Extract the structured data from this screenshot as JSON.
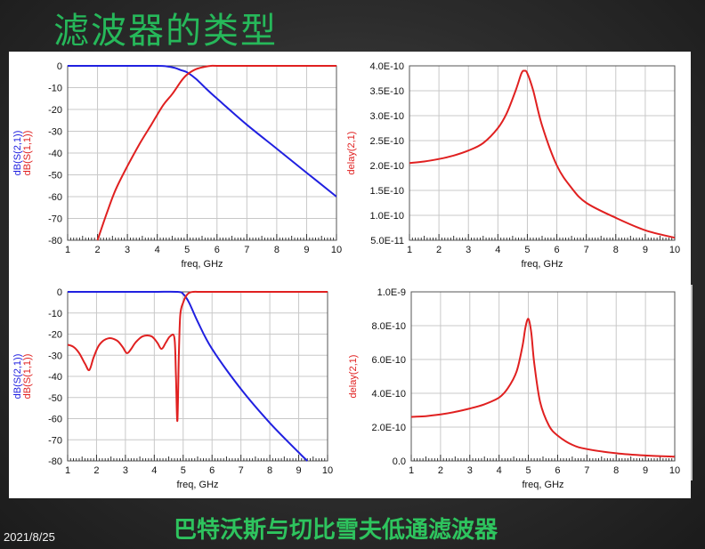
{
  "slide": {
    "title": "滤波器的类型",
    "caption": "巴特沃斯与切比雪夫低通滤波器",
    "date": "2021/8/25"
  },
  "chart_data": [
    {
      "id": "butter-s",
      "type": "line",
      "xlabel": "freq, GHz",
      "ylabel_top": "dB(S(2,1))",
      "ylabel_bottom": "dB(S(1,1))",
      "xlim": [
        1,
        10
      ],
      "ylim": [
        -80,
        0
      ],
      "xticks": [
        "1",
        "2",
        "3",
        "4",
        "5",
        "6",
        "7",
        "8",
        "9",
        "10"
      ],
      "yticks": [
        "0",
        "-10",
        "-20",
        "-30",
        "-40",
        "-50",
        "-60",
        "-70",
        "-80"
      ],
      "grid": true,
      "series": [
        {
          "color": "#2020e0",
          "x": [
            1,
            2,
            3,
            4,
            4.3,
            4.6,
            4.8,
            5,
            5.3,
            5.6,
            6,
            7,
            8,
            9,
            10
          ],
          "y": [
            0,
            0,
            0,
            0,
            -0.2,
            -1,
            -2,
            -3,
            -6,
            -10,
            -15,
            -27,
            -38,
            -49,
            -60
          ]
        },
        {
          "color": "#e02020",
          "x": [
            2,
            2.3,
            2.6,
            3,
            3.4,
            3.8,
            4.2,
            4.5,
            4.8,
            5,
            5.3,
            5.6,
            5.8,
            6,
            7,
            8,
            9,
            10
          ],
          "y": [
            -80,
            -68,
            -57,
            -46,
            -36,
            -27,
            -18,
            -13,
            -7,
            -4,
            -1.5,
            -0.4,
            0,
            0,
            0,
            0,
            0,
            0
          ]
        }
      ]
    },
    {
      "id": "butter-delay",
      "type": "line",
      "xlabel": "freq, GHz",
      "ylabel": "delay(2,1)",
      "xlim": [
        1,
        10
      ],
      "ylim": [
        5e-11,
        4e-10
      ],
      "xticks": [
        "1",
        "2",
        "3",
        "4",
        "5",
        "6",
        "7",
        "8",
        "9",
        "10"
      ],
      "yticks": [
        "4.0E-10",
        "3.5E-10",
        "3.0E-10",
        "2.5E-10",
        "2.0E-10",
        "1.5E-10",
        "1.0E-10",
        "5.0E-11"
      ],
      "grid": true,
      "series": [
        {
          "color": "#e02020",
          "x": [
            1,
            1.5,
            2,
            2.5,
            3,
            3.5,
            4,
            4.3,
            4.6,
            4.8,
            4.9,
            5,
            5.2,
            5.5,
            6,
            6.5,
            7,
            8,
            9,
            10
          ],
          "y": [
            2.05e-10,
            2.08e-10,
            2.13e-10,
            2.2e-10,
            2.3e-10,
            2.45e-10,
            2.75e-10,
            3.05e-10,
            3.5e-10,
            3.85e-10,
            3.9e-10,
            3.85e-10,
            3.5e-10,
            2.8e-10,
            2e-10,
            1.55e-10,
            1.25e-10,
            9.5e-11,
            7e-11,
            5.5e-11
          ]
        }
      ]
    },
    {
      "id": "cheby-s",
      "type": "line",
      "xlabel": "freq, GHz",
      "ylabel_top": "dB(S(2,1))",
      "ylabel_bottom": "dB(S(1,1))",
      "xlim": [
        1,
        10
      ],
      "ylim": [
        -80,
        0
      ],
      "xticks": [
        "1",
        "2",
        "3",
        "4",
        "5",
        "6",
        "7",
        "8",
        "9",
        "10"
      ],
      "yticks": [
        "0",
        "-10",
        "-20",
        "-30",
        "-40",
        "-50",
        "-60",
        "-70",
        "-80"
      ],
      "grid": true,
      "series": [
        {
          "color": "#2020e0",
          "x": [
            1,
            2,
            3,
            4,
            4.8,
            5,
            5.2,
            5.5,
            6,
            7,
            8,
            9,
            9.3
          ],
          "y": [
            0,
            0,
            0,
            0,
            0,
            -1,
            -5,
            -14,
            -27,
            -46,
            -62,
            -76,
            -80
          ]
        },
        {
          "color": "#e02020",
          "x": [
            1,
            1.2,
            1.4,
            1.6,
            1.75,
            1.9,
            2.1,
            2.4,
            2.7,
            2.9,
            3.05,
            3.2,
            3.35,
            3.6,
            3.9,
            4.1,
            4.25,
            4.4,
            4.55,
            4.7,
            4.75,
            4.8,
            4.85,
            4.9,
            5,
            5.1,
            5.2,
            5.35,
            5.6,
            6,
            7,
            8,
            9,
            10
          ],
          "y": [
            -25,
            -26,
            -29,
            -34,
            -37,
            -31,
            -25,
            -22,
            -23,
            -26,
            -29,
            -27,
            -24,
            -21,
            -21,
            -24,
            -27,
            -24,
            -21,
            -22,
            -40,
            -61,
            -30,
            -11,
            -5,
            -2,
            -0.5,
            0,
            0,
            0,
            0,
            0,
            0,
            0
          ]
        }
      ]
    },
    {
      "id": "cheby-delay",
      "type": "line",
      "xlabel": "freq, GHz",
      "ylabel": "delay(2,1)",
      "xlim": [
        1,
        10
      ],
      "ylim": [
        0,
        1e-09
      ],
      "xticks": [
        "1",
        "2",
        "3",
        "4",
        "5",
        "6",
        "7",
        "8",
        "9",
        "10"
      ],
      "yticks": [
        "1.0E-9",
        "8.0E-10",
        "6.0E-10",
        "4.0E-10",
        "2.0E-10",
        "0.0"
      ],
      "grid": true,
      "series": [
        {
          "color": "#e02020",
          "x": [
            1,
            1.5,
            2,
            2.5,
            3,
            3.5,
            4,
            4.3,
            4.6,
            4.8,
            4.9,
            5,
            5.1,
            5.2,
            5.4,
            5.7,
            6,
            6.5,
            7,
            8,
            9,
            10
          ],
          "y": [
            2.6e-10,
            2.65e-10,
            2.75e-10,
            2.9e-10,
            3.1e-10,
            3.35e-10,
            3.75e-10,
            4.3e-10,
            5.3e-10,
            6.8e-10,
            7.9e-10,
            8.4e-10,
            7.6e-10,
            5.8e-10,
            3.5e-10,
            2.1e-10,
            1.5e-10,
            9.5e-11,
            7e-11,
            4.5e-11,
            3.2e-11,
            2.5e-11
          ]
        }
      ]
    }
  ]
}
